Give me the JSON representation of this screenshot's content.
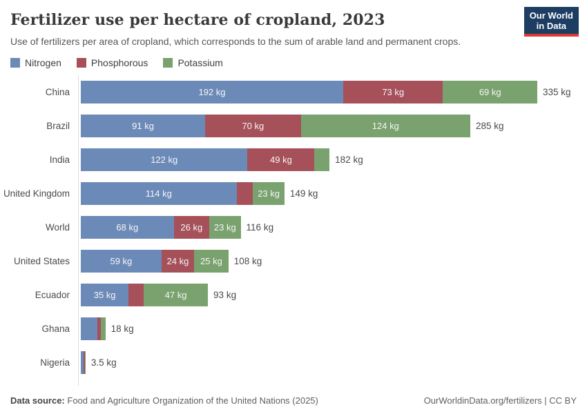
{
  "header": {
    "title": "Fertilizer use per hectare of cropland, 2023",
    "subtitle": "Use of fertilizers per area of cropland, which corresponds to the sum of arable land and permanent crops.",
    "logo": {
      "line1": "Our World",
      "line2": "in Data"
    }
  },
  "legend": {
    "items": [
      {
        "label": "Nitrogen",
        "color": "#6c8ab8"
      },
      {
        "label": "Phosphorous",
        "color": "#a6505a"
      },
      {
        "label": "Potassium",
        "color": "#79a26e"
      }
    ]
  },
  "chart_data": {
    "type": "bar",
    "orientation": "horizontal",
    "stacked": true,
    "unit": "kg",
    "xlim": [
      0,
      335
    ],
    "series_names": [
      "Nitrogen",
      "Phosphorous",
      "Potassium"
    ],
    "categories": [
      "China",
      "Brazil",
      "India",
      "United Kingdom",
      "World",
      "United States",
      "Ecuador",
      "Ghana",
      "Nigeria"
    ],
    "rows": [
      {
        "country": "China",
        "total": 335,
        "total_label": "335 kg",
        "segments": [
          {
            "series": "Nitrogen",
            "value": 192,
            "label": "192 kg"
          },
          {
            "series": "Phosphorous",
            "value": 73,
            "label": "73 kg"
          },
          {
            "series": "Potassium",
            "value": 69,
            "label": "69 kg"
          }
        ]
      },
      {
        "country": "Brazil",
        "total": 285,
        "total_label": "285 kg",
        "segments": [
          {
            "series": "Nitrogen",
            "value": 91,
            "label": "91 kg"
          },
          {
            "series": "Phosphorous",
            "value": 70,
            "label": "70 kg"
          },
          {
            "series": "Potassium",
            "value": 124,
            "label": "124 kg"
          }
        ]
      },
      {
        "country": "India",
        "total": 182,
        "total_label": "182 kg",
        "segments": [
          {
            "series": "Nitrogen",
            "value": 122,
            "label": "122 kg"
          },
          {
            "series": "Phosphorous",
            "value": 49,
            "label": "49 kg"
          },
          {
            "series": "Potassium",
            "value": 11,
            "label": ""
          }
        ]
      },
      {
        "country": "United Kingdom",
        "total": 149,
        "total_label": "149 kg",
        "segments": [
          {
            "series": "Nitrogen",
            "value": 114,
            "label": "114 kg"
          },
          {
            "series": "Phosphorous",
            "value": 12,
            "label": ""
          },
          {
            "series": "Potassium",
            "value": 23,
            "label": "23 kg"
          }
        ]
      },
      {
        "country": "World",
        "total": 116,
        "total_label": "116 kg",
        "segments": [
          {
            "series": "Nitrogen",
            "value": 68,
            "label": "68 kg"
          },
          {
            "series": "Phosphorous",
            "value": 26,
            "label": "26 kg"
          },
          {
            "series": "Potassium",
            "value": 23,
            "label": "23 kg"
          }
        ]
      },
      {
        "country": "United States",
        "total": 108,
        "total_label": "108 kg",
        "segments": [
          {
            "series": "Nitrogen",
            "value": 59,
            "label": "59 kg"
          },
          {
            "series": "Phosphorous",
            "value": 24,
            "label": "24 kg"
          },
          {
            "series": "Potassium",
            "value": 25,
            "label": "25 kg"
          }
        ]
      },
      {
        "country": "Ecuador",
        "total": 93,
        "total_label": "93 kg",
        "segments": [
          {
            "series": "Nitrogen",
            "value": 35,
            "label": "35 kg"
          },
          {
            "series": "Phosphorous",
            "value": 11,
            "label": ""
          },
          {
            "series": "Potassium",
            "value": 47,
            "label": "47 kg"
          }
        ]
      },
      {
        "country": "Ghana",
        "total": 18,
        "total_label": "18 kg",
        "segments": [
          {
            "series": "Nitrogen",
            "value": 12,
            "label": ""
          },
          {
            "series": "Phosphorous",
            "value": 2.5,
            "label": ""
          },
          {
            "series": "Potassium",
            "value": 3.5,
            "label": ""
          }
        ]
      },
      {
        "country": "Nigeria",
        "total": 3.5,
        "total_label": "3.5 kg",
        "segments": [
          {
            "series": "Nitrogen",
            "value": 2.2,
            "label": ""
          },
          {
            "series": "Phosphorous",
            "value": 0.8,
            "label": ""
          },
          {
            "series": "Potassium",
            "value": 0.5,
            "label": ""
          }
        ]
      }
    ]
  },
  "footer": {
    "datasource_label": "Data source:",
    "datasource_text": "Food and Agriculture Organization of the United Nations (2025)",
    "attribution": "OurWorldinData.org/fertilizers | CC BY"
  }
}
